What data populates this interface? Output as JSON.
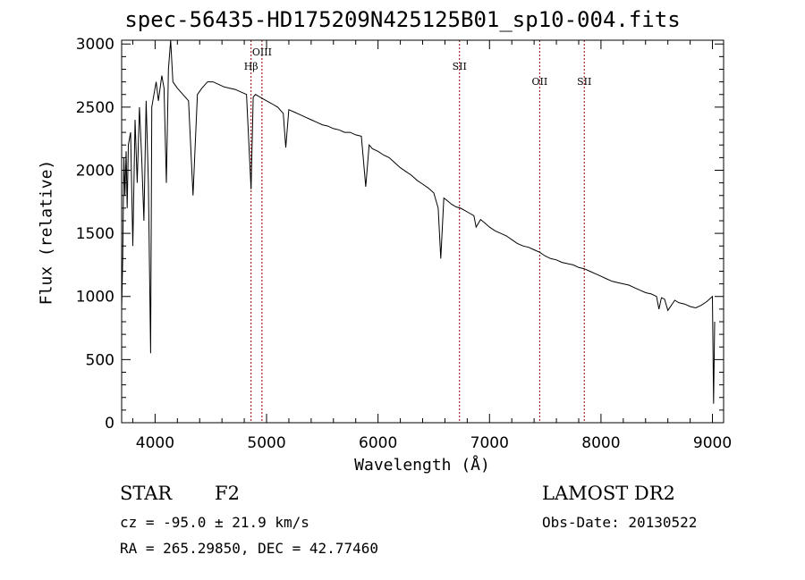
{
  "chart_data": {
    "type": "line",
    "title": "spec-56435-HD175209N425125B01_sp10-004.fits",
    "xlabel": "Wavelength (Å)",
    "ylabel": "Flux (relative)",
    "xlim": [
      3700,
      9100
    ],
    "ylim": [
      0,
      3030
    ],
    "xticks": [
      4000,
      5000,
      6000,
      7000,
      8000,
      9000
    ],
    "yticks": [
      0,
      500,
      1000,
      1500,
      2000,
      2500,
      3000
    ],
    "series": [
      {
        "x": [
          3700,
          3710,
          3720,
          3730,
          3740,
          3750,
          3760,
          3780,
          3800,
          3820,
          3840,
          3860,
          3880,
          3900,
          3920,
          3940,
          3960,
          3970,
          3990,
          4010,
          4030,
          4060,
          4080,
          4101,
          4120,
          4140,
          4160,
          4200,
          4250,
          4300,
          4340,
          4380,
          4420,
          4470,
          4520,
          4570,
          4620,
          4670,
          4720,
          4770,
          4820,
          4861,
          4880,
          4900,
          4940,
          4980,
          5020,
          5060,
          5100,
          5150,
          5172,
          5200,
          5250,
          5300,
          5350,
          5400,
          5450,
          5500,
          5550,
          5600,
          5650,
          5700,
          5750,
          5800,
          5850,
          5890,
          5920,
          5950,
          6000,
          6050,
          6100,
          6150,
          6200,
          6250,
          6300,
          6350,
          6400,
          6450,
          6500,
          6540,
          6563,
          6590,
          6620,
          6660,
          6700,
          6740,
          6780,
          6820,
          6860,
          6880,
          6920,
          6960,
          7000,
          7050,
          7100,
          7150,
          7200,
          7250,
          7300,
          7350,
          7400,
          7450,
          7500,
          7550,
          7600,
          7650,
          7700,
          7750,
          7800,
          7850,
          7900,
          7950,
          8000,
          8050,
          8100,
          8150,
          8200,
          8250,
          8300,
          8350,
          8400,
          8450,
          8498,
          8520,
          8542,
          8570,
          8600,
          8662,
          8700,
          8750,
          8800,
          8850,
          8900,
          8950,
          9000,
          9010,
          9020
        ],
        "y": [
          900,
          1300,
          2100,
          1800,
          2150,
          1700,
          2200,
          2300,
          1400,
          2400,
          1900,
          2500,
          2100,
          1600,
          2550,
          1900,
          550,
          2500,
          2600,
          2700,
          2550,
          2750,
          2650,
          1900,
          2800,
          3050,
          2700,
          2650,
          2600,
          2550,
          1800,
          2600,
          2650,
          2700,
          2700,
          2680,
          2660,
          2650,
          2640,
          2620,
          2600,
          1850,
          2580,
          2600,
          2580,
          2560,
          2540,
          2520,
          2500,
          2450,
          2180,
          2480,
          2460,
          2440,
          2420,
          2400,
          2380,
          2360,
          2350,
          2330,
          2320,
          2300,
          2300,
          2280,
          2270,
          1870,
          2200,
          2170,
          2150,
          2120,
          2100,
          2060,
          2020,
          1990,
          1960,
          1920,
          1890,
          1860,
          1820,
          1700,
          1300,
          1780,
          1760,
          1730,
          1710,
          1700,
          1680,
          1660,
          1640,
          1550,
          1610,
          1580,
          1550,
          1520,
          1500,
          1480,
          1450,
          1420,
          1400,
          1390,
          1370,
          1350,
          1320,
          1300,
          1290,
          1270,
          1260,
          1250,
          1230,
          1220,
          1200,
          1180,
          1160,
          1140,
          1120,
          1110,
          1100,
          1090,
          1070,
          1050,
          1030,
          1020,
          1000,
          900,
          990,
          980,
          890,
          970,
          950,
          940,
          920,
          910,
          930,
          960,
          1000,
          150,
          800
        ]
      }
    ],
    "lines": [
      {
        "label": "Hβ",
        "wavelength": 4861
      },
      {
        "label": "OIII",
        "wavelength": 4959
      },
      {
        "label": "SII",
        "wavelength": 6731
      },
      {
        "label": "OII",
        "wavelength": 7450
      },
      {
        "label": "SII",
        "wavelength": 7850
      }
    ]
  },
  "footer": {
    "object_class": "STAR",
    "subclass": "F2",
    "survey": "LAMOST DR2",
    "redshift": "cz = -95.0 ± 21.9 km/s",
    "obs_date": "Obs-Date: 20130522",
    "coords": "RA = 265.29850, DEC =  42.77460"
  },
  "colors": {
    "spectrum": "#000000",
    "line_markers": "#8b0000"
  }
}
